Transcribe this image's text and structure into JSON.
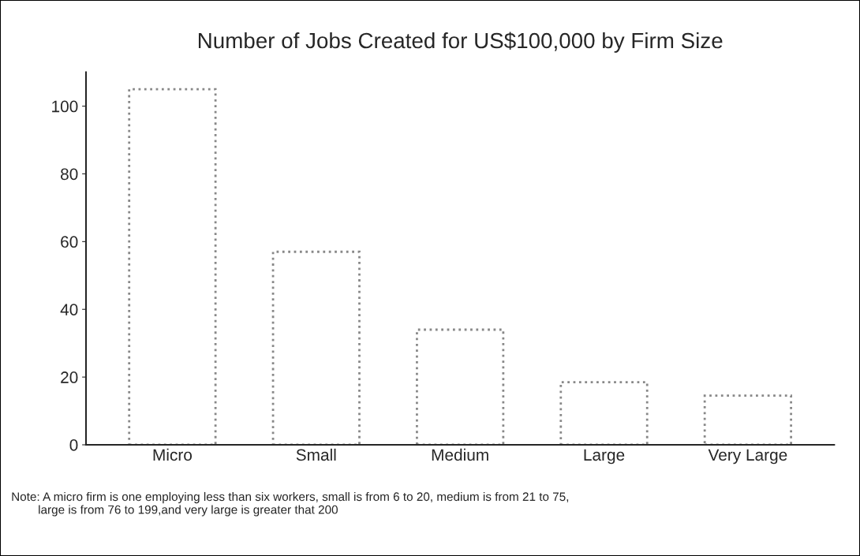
{
  "chart_data": {
    "type": "bar",
    "title": "Number of Jobs Created for US$100,000 by Firm Size",
    "categories": [
      "Micro",
      "Small",
      "Medium",
      "Large",
      "Very Large"
    ],
    "values": [
      105,
      57,
      34,
      18.5,
      14.5
    ],
    "color": "#ffffff",
    "ylim": [
      0,
      110
    ],
    "yticks": [
      0,
      20,
      40,
      60,
      80,
      100
    ],
    "grid": false,
    "annotations": [
      "Note: A micro firm is one employing less than six workers, small is from 6 to 20, medium is from 21 to 75,\n        large is from 76 to 199,and very large is greater that 200"
    ]
  }
}
